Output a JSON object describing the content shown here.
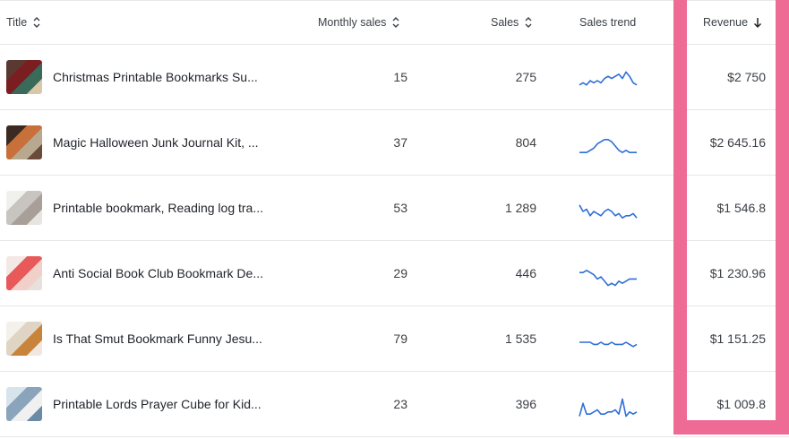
{
  "columns": {
    "title": "Title",
    "monthly_sales": "Monthly sales",
    "sales": "Sales",
    "sales_trend": "Sales trend",
    "revenue": "Revenue"
  },
  "rows": [
    {
      "title": "Christmas Printable Bookmarks Su...",
      "monthly_sales": "15",
      "sales": "275",
      "revenue": "$2 750",
      "trend": [
        7,
        6,
        7,
        5,
        6,
        5,
        6,
        4,
        3,
        4,
        3,
        2,
        4,
        1,
        3,
        6,
        7
      ],
      "thumb": [
        "#5a3a30",
        "#7a1e22",
        "#3a6a5a",
        "#d8c8a8"
      ]
    },
    {
      "title": "Magic Halloween Junk Journal Kit, ...",
      "monthly_sales": "37",
      "sales": "804",
      "revenue": "$2 645.16",
      "trend": [
        8,
        8,
        8,
        7,
        6,
        4,
        3,
        2,
        2,
        3,
        5,
        7,
        8,
        7,
        8,
        8,
        8
      ],
      "thumb": [
        "#3a2a22",
        "#c8703a",
        "#b8a890",
        "#6a4a3a"
      ]
    },
    {
      "title": "Printable bookmark, Reading log tra...",
      "monthly_sales": "53",
      "sales": "1 289",
      "revenue": "$1 546.8",
      "trend": [
        2,
        5,
        4,
        7,
        5,
        6,
        7,
        5,
        4,
        5,
        7,
        6,
        8,
        7,
        7,
        6,
        8
      ],
      "thumb": [
        "#f0f0ec",
        "#c8c4c0",
        "#a8a098",
        "#e8e4e0"
      ]
    },
    {
      "title": "Anti Social Book Club Bookmark De...",
      "monthly_sales": "29",
      "sales": "446",
      "revenue": "$1 230.96",
      "trend": [
        3,
        3,
        2,
        3,
        4,
        6,
        5,
        7,
        9,
        8,
        9,
        7,
        8,
        7,
        6,
        6,
        6
      ],
      "thumb": [
        "#f4e8e4",
        "#e85a5a",
        "#f0d0c8",
        "#e8e0dc"
      ]
    },
    {
      "title": "Is That Smut Bookmark Funny Jesu...",
      "monthly_sales": "79",
      "sales": "1 535",
      "revenue": "$1 151.25",
      "trend": [
        5,
        5,
        5,
        5,
        6,
        6,
        5,
        6,
        6,
        5,
        6,
        6,
        6,
        5,
        6,
        7,
        6
      ],
      "thumb": [
        "#f4f0ea",
        "#e0d4c4",
        "#c8843a",
        "#f0e8e0"
      ]
    },
    {
      "title": "Printable Lords Prayer Cube for Kid...",
      "monthly_sales": "23",
      "sales": "396",
      "revenue": "$1 009.8",
      "trend": [
        9,
        3,
        8,
        8,
        7,
        6,
        8,
        8,
        7,
        7,
        6,
        8,
        1,
        9,
        7,
        8,
        7
      ],
      "thumb": [
        "#d8e4ec",
        "#8aa4bc",
        "#f0f0f0",
        "#6a8aa8"
      ]
    }
  ],
  "colors": {
    "accent": "#ee6b96",
    "trend_line": "#2f6fd6"
  }
}
